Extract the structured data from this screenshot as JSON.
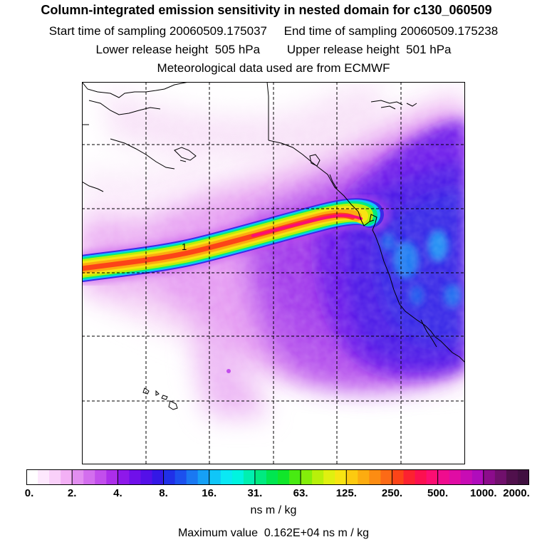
{
  "header": {
    "title": "Column-integrated emission sensitivity in nested domain for c130_060509",
    "line1": "Start time of sampling 20060509.175037     End time of sampling 20060509.175238",
    "line2": "Lower release height  505 hPa        Upper release height  501 hPa",
    "line3": "Meteorological data used are from ECMWF"
  },
  "map": {
    "plume_label": "1"
  },
  "colorbar": {
    "tick_labels": [
      "0.",
      "2.",
      "4.",
      "8.",
      "16.",
      "31.",
      "63.",
      "125.",
      "250.",
      "500.",
      "1000.",
      "2000."
    ],
    "colors": [
      "#ffffff",
      "#fde8fd",
      "#f9d0f9",
      "#f3b0f5",
      "#e28ef0",
      "#d36eee",
      "#c24eec",
      "#ac2eea",
      "#8e18ea",
      "#7010ea",
      "#5410e8",
      "#3418e6",
      "#2030e8",
      "#1c50ee",
      "#1a78f2",
      "#16a0f6",
      "#10c6f8",
      "#0ae8f4",
      "#00f4e0",
      "#00f0b0",
      "#00ea80",
      "#00e650",
      "#10e62a",
      "#48ea12",
      "#84ee0a",
      "#b8f00a",
      "#e0f010",
      "#f8e412",
      "#fcca10",
      "#fcac10",
      "#fc8c12",
      "#fc6a16",
      "#fc4418",
      "#fc2230",
      "#fc1050",
      "#fc0e72",
      "#f00c8e",
      "#e00ca4",
      "#c80cb4",
      "#b00cbc",
      "#8c0c8c",
      "#70106c",
      "#50104c",
      "#401040"
    ],
    "units": "ns m / kg"
  },
  "footer": {
    "max_value": "Maximum value  0.162E+04 ns m / kg"
  }
}
